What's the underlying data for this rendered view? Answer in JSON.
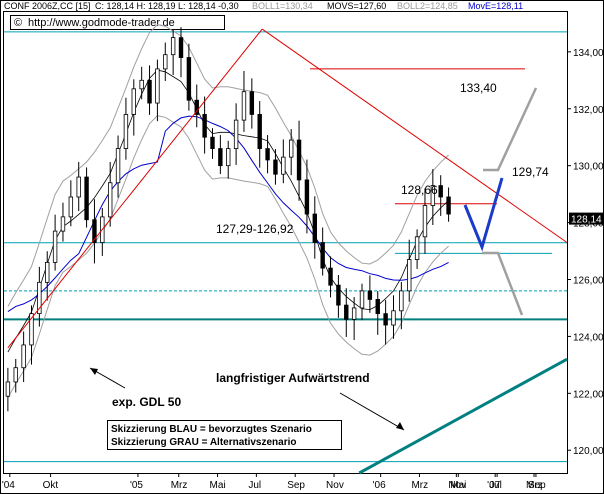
{
  "header": {
    "symbol": "CONF 2006Z,CC [15]",
    "quote": "C: 128,14 H: 128,19 L: 128,14 -0,30",
    "boll1": "BOLL1=130,34",
    "movs": "MOVS=127,60",
    "boll2": "BOLL2=124,85",
    "move": "MovE=128,11",
    "copyright_symbol": "©",
    "url": "http://www.godmode-trader.de"
  },
  "chart_data": {
    "type": "candlestick",
    "y_range": [
      119.2,
      135.4
    ],
    "y_ticks": [
      120,
      122,
      124,
      126,
      128,
      130,
      132,
      134
    ],
    "y_tick_labels": [
      "120,00",
      "122,00",
      "124,00",
      "126,00",
      "128,00",
      "130,00",
      "132,00",
      "134,00"
    ],
    "x_range": [
      0,
      29
    ],
    "x_ticks": [
      0.3,
      2.4,
      6.9,
      9.0,
      11.0,
      13.0,
      15.0,
      17.0,
      19.4,
      21.4,
      23.4,
      25.4,
      27.4
    ],
    "x_tick_labels": [
      "'04",
      "Okt",
      "'05",
      "Mrz",
      "Mai",
      "Jul",
      "Sep",
      "Nov",
      "'06",
      "Mrz",
      "Mai",
      "Jul",
      "Sep"
    ],
    "x_tick_labels_right": [
      "Nov",
      "'07",
      "Mrz"
    ],
    "x_ticks_right": [
      23.3,
      25.3,
      27.3
    ],
    "candles_close": [
      122.4,
      122.9,
      123.7,
      124.8,
      125.9,
      126.6,
      127.7,
      128.2,
      128.9,
      129.6,
      128.1,
      127.3,
      128.2,
      129.4,
      130.6,
      131.8,
      132.7,
      133.0,
      132.2,
      133.4,
      133.9,
      134.5,
      133.8,
      132.3,
      131.8,
      131.0,
      130.6,
      130.0,
      130.6,
      131.6,
      132.6,
      131.8,
      130.6,
      130.2,
      129.7,
      130.3,
      130.9,
      129.5,
      128.3,
      127.3,
      126.4,
      125.8,
      125.1,
      124.6,
      125.0,
      125.6,
      125.3,
      124.8,
      124.4,
      124.9,
      125.6,
      126.7,
      127.5,
      128.6,
      129.3,
      128.9,
      128.3
    ],
    "bollinger_upper": 130.34,
    "moving_average": 127.6,
    "bollinger_lower": 124.85,
    "ema": 128.11,
    "last_value_label": "128,14",
    "horizontal_levels": [
      {
        "label": "133,40",
        "value": 133.4,
        "color": "#dd0000"
      },
      {
        "label": "128,66",
        "value": 128.66,
        "color": "#dd0000"
      },
      {
        "label": "127,29-126,92",
        "value": 127.29,
        "color": "#00a0b4"
      },
      {
        "label": "",
        "value": 126.92,
        "color": "#00a0b4"
      },
      {
        "label": "",
        "value": 125.6,
        "color": "#00a0b4"
      },
      {
        "label": "",
        "value": 124.6,
        "color": "#007f7f"
      },
      {
        "label": "",
        "value": 134.7,
        "color": "#00a0b4"
      },
      {
        "label": "",
        "value": 119.6,
        "color": "#00a0b4"
      }
    ],
    "level_129_74": "129,74",
    "annotations": {
      "trend_label": "langfristiger Aufwärtstrend",
      "gdl_label": "exp. GDL 50",
      "legend_blue": "Skizzierung BLAU = bevorzugtes Szenario",
      "legend_gray": "Skizzierung GRAU = Alternativszenario"
    },
    "colors": {
      "upper_trendline": "#e00000",
      "long_trend": "#008080",
      "ema_line": "#0000cc",
      "bollinger": "#a0a0a0",
      "blue_scenario": "#1a3cc8",
      "gray_scenario": "#a0a0a0"
    }
  }
}
